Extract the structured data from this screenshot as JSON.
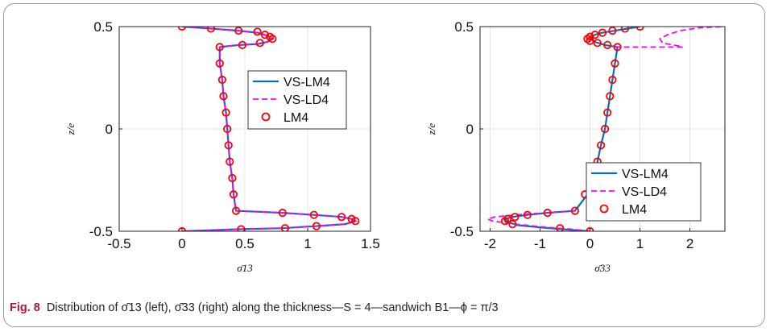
{
  "caption": {
    "label": "Fig. 8",
    "text": "Distribution of σ̄13 (left), σ̄33 (right) along the thickness—S = 4—sandwich B1—ϕ = π/3"
  },
  "colors": {
    "vs_lm4": "#0072bd",
    "vs_ld4": "#ff00ff",
    "lm4": "#ff0000"
  },
  "chart_data": [
    {
      "type": "line",
      "xlabel": "σ̄13",
      "ylabel": "z/e",
      "xlim": [
        -0.5,
        1.5
      ],
      "ylim": [
        -0.5,
        0.5
      ],
      "xticks": [
        "-0.5",
        "0",
        "0.5",
        "1",
        "1.5"
      ],
      "yticks": [
        "-0.5",
        "0",
        "0.5"
      ],
      "grid": true,
      "legend_position": "center-right",
      "legend": [
        "VS-LM4",
        "VS-LD4",
        "LM4"
      ],
      "series": [
        {
          "name": "VS-LM4",
          "style": "solid",
          "points": [
            [
              0,
              0.5
            ],
            [
              0.23,
              0.49
            ],
            [
              0.45,
              0.48
            ],
            [
              0.6,
              0.47
            ],
            [
              0.68,
              0.455
            ],
            [
              0.72,
              0.44
            ],
            [
              0.68,
              0.425
            ],
            [
              0.6,
              0.415
            ],
            [
              0.45,
              0.41
            ],
            [
              0.3,
              0.4
            ],
            [
              0.3,
              0.32
            ],
            [
              0.32,
              0.24
            ],
            [
              0.33,
              0.16
            ],
            [
              0.35,
              0.08
            ],
            [
              0.36,
              0.0
            ],
            [
              0.37,
              -0.08
            ],
            [
              0.38,
              -0.16
            ],
            [
              0.4,
              -0.24
            ],
            [
              0.41,
              -0.32
            ],
            [
              0.43,
              -0.4
            ],
            [
              0.8,
              -0.41
            ],
            [
              1.05,
              -0.42
            ],
            [
              1.27,
              -0.43
            ],
            [
              1.35,
              -0.44
            ],
            [
              1.38,
              -0.45
            ],
            [
              1.3,
              -0.465
            ],
            [
              1.07,
              -0.475
            ],
            [
              0.8,
              -0.485
            ],
            [
              0.45,
              -0.49
            ],
            [
              0,
              -0.5
            ]
          ]
        },
        {
          "name": "VS-LD4",
          "style": "dashed",
          "points": [
            [
              0,
              0.5
            ],
            [
              0.23,
              0.49
            ],
            [
              0.45,
              0.48
            ],
            [
              0.6,
              0.47
            ],
            [
              0.68,
              0.455
            ],
            [
              0.72,
              0.44
            ],
            [
              0.68,
              0.425
            ],
            [
              0.6,
              0.415
            ],
            [
              0.45,
              0.41
            ],
            [
              0.3,
              0.4
            ],
            [
              0.3,
              0.32
            ],
            [
              0.32,
              0.24
            ],
            [
              0.33,
              0.16
            ],
            [
              0.35,
              0.08
            ],
            [
              0.36,
              0.0
            ],
            [
              0.37,
              -0.08
            ],
            [
              0.38,
              -0.16
            ],
            [
              0.4,
              -0.24
            ],
            [
              0.41,
              -0.32
            ],
            [
              0.43,
              -0.4
            ],
            [
              0.8,
              -0.41
            ],
            [
              1.05,
              -0.42
            ],
            [
              1.27,
              -0.43
            ],
            [
              1.35,
              -0.44
            ],
            [
              1.38,
              -0.45
            ],
            [
              1.3,
              -0.465
            ],
            [
              1.07,
              -0.475
            ],
            [
              0.8,
              -0.485
            ],
            [
              0.45,
              -0.49
            ],
            [
              0,
              -0.5
            ]
          ]
        },
        {
          "name": "LM4",
          "style": "markers",
          "points": [
            [
              0,
              0.5
            ],
            [
              0.23,
              0.49
            ],
            [
              0.45,
              0.48
            ],
            [
              0.6,
              0.475
            ],
            [
              0.66,
              0.46
            ],
            [
              0.7,
              0.45
            ],
            [
              0.72,
              0.44
            ],
            [
              0.62,
              0.42
            ],
            [
              0.48,
              0.41
            ],
            [
              0.3,
              0.4
            ],
            [
              0.3,
              0.32
            ],
            [
              0.32,
              0.24
            ],
            [
              0.33,
              0.16
            ],
            [
              0.35,
              0.08
            ],
            [
              0.36,
              0.0
            ],
            [
              0.37,
              -0.08
            ],
            [
              0.38,
              -0.16
            ],
            [
              0.4,
              -0.24
            ],
            [
              0.41,
              -0.32
            ],
            [
              0.43,
              -0.4
            ],
            [
              0.8,
              -0.41
            ],
            [
              1.05,
              -0.42
            ],
            [
              1.27,
              -0.43
            ],
            [
              1.35,
              -0.44
            ],
            [
              1.38,
              -0.45
            ],
            [
              1.07,
              -0.475
            ],
            [
              0.82,
              -0.485
            ],
            [
              0.47,
              -0.49
            ],
            [
              0,
              -0.5
            ]
          ]
        }
      ]
    },
    {
      "type": "line",
      "xlabel": "σ̄33",
      "ylabel": "z/e",
      "xlim": [
        -2.2,
        2.7
      ],
      "ylim": [
        -0.5,
        0.5
      ],
      "xticks": [
        "-2",
        "-1",
        "0",
        "1",
        "2"
      ],
      "yticks": [
        "-0.5",
        "0",
        "0.5"
      ],
      "grid": true,
      "legend_position": "lower-right",
      "legend": [
        "VS-LM4",
        "VS-LD4",
        "LM4"
      ],
      "series": [
        {
          "name": "VS-LM4",
          "style": "solid",
          "points": [
            [
              1.0,
              0.5
            ],
            [
              0.75,
              0.49
            ],
            [
              0.5,
              0.48
            ],
            [
              0.25,
              0.47
            ],
            [
              0.1,
              0.46
            ],
            [
              0.0,
              0.45
            ],
            [
              0.0,
              0.44
            ],
            [
              0.1,
              0.425
            ],
            [
              0.3,
              0.41
            ],
            [
              0.55,
              0.4
            ],
            [
              0.5,
              0.32
            ],
            [
              0.45,
              0.24
            ],
            [
              0.4,
              0.16
            ],
            [
              0.35,
              0.08
            ],
            [
              0.3,
              0.0
            ],
            [
              0.22,
              -0.08
            ],
            [
              0.15,
              -0.16
            ],
            [
              0.05,
              -0.24
            ],
            [
              -0.05,
              -0.32
            ],
            [
              -0.3,
              -0.4
            ],
            [
              -0.85,
              -0.41
            ],
            [
              -1.25,
              -0.42
            ],
            [
              -1.55,
              -0.43
            ],
            [
              -1.7,
              -0.44
            ],
            [
              -1.65,
              -0.455
            ],
            [
              -1.45,
              -0.47
            ],
            [
              -1.05,
              -0.48
            ],
            [
              -0.55,
              -0.49
            ],
            [
              0,
              -0.5
            ]
          ]
        },
        {
          "name": "VS-LD4",
          "style": "dashed",
          "points": [
            [
              0.5,
              0.4
            ],
            [
              1.85,
              0.4
            ],
            [
              1.85,
              0.402
            ],
            [
              1.45,
              0.42
            ],
            [
              1.4,
              0.44
            ],
            [
              1.55,
              0.46
            ],
            [
              1.8,
              0.48
            ],
            [
              2.2,
              0.495
            ],
            [
              2.7,
              0.5
            ]
          ]
        },
        {
          "name": "VS-LD4",
          "style": "dashed",
          "points": [
            [
              -0.3,
              -0.4
            ],
            [
              -1.5,
              -0.42
            ],
            [
              -1.9,
              -0.43
            ],
            [
              -2.05,
              -0.44
            ],
            [
              -1.95,
              -0.45
            ],
            [
              -1.5,
              -0.465
            ],
            [
              -0.9,
              -0.48
            ],
            [
              -0.35,
              -0.49
            ],
            [
              0,
              -0.5
            ]
          ]
        },
        {
          "name": "LM4",
          "style": "markers",
          "points": [
            [
              1.0,
              0.5
            ],
            [
              0.7,
              0.49
            ],
            [
              0.45,
              0.48
            ],
            [
              0.25,
              0.47
            ],
            [
              0.1,
              0.46
            ],
            [
              0.0,
              0.45
            ],
            [
              -0.05,
              0.44
            ],
            [
              0.0,
              0.43
            ],
            [
              0.15,
              0.42
            ],
            [
              0.35,
              0.41
            ],
            [
              0.55,
              0.4
            ],
            [
              0.5,
              0.32
            ],
            [
              0.45,
              0.24
            ],
            [
              0.4,
              0.16
            ],
            [
              0.35,
              0.08
            ],
            [
              0.3,
              0.0
            ],
            [
              0.22,
              -0.08
            ],
            [
              0.15,
              -0.16
            ],
            [
              0.05,
              -0.24
            ],
            [
              -0.1,
              -0.32
            ],
            [
              -0.3,
              -0.4
            ],
            [
              -0.85,
              -0.41
            ],
            [
              -1.25,
              -0.42
            ],
            [
              -1.5,
              -0.43
            ],
            [
              -1.65,
              -0.44
            ],
            [
              -1.7,
              -0.45
            ],
            [
              -1.55,
              -0.465
            ],
            [
              -0.6,
              -0.485
            ],
            [
              0,
              -0.5
            ]
          ]
        }
      ]
    }
  ]
}
